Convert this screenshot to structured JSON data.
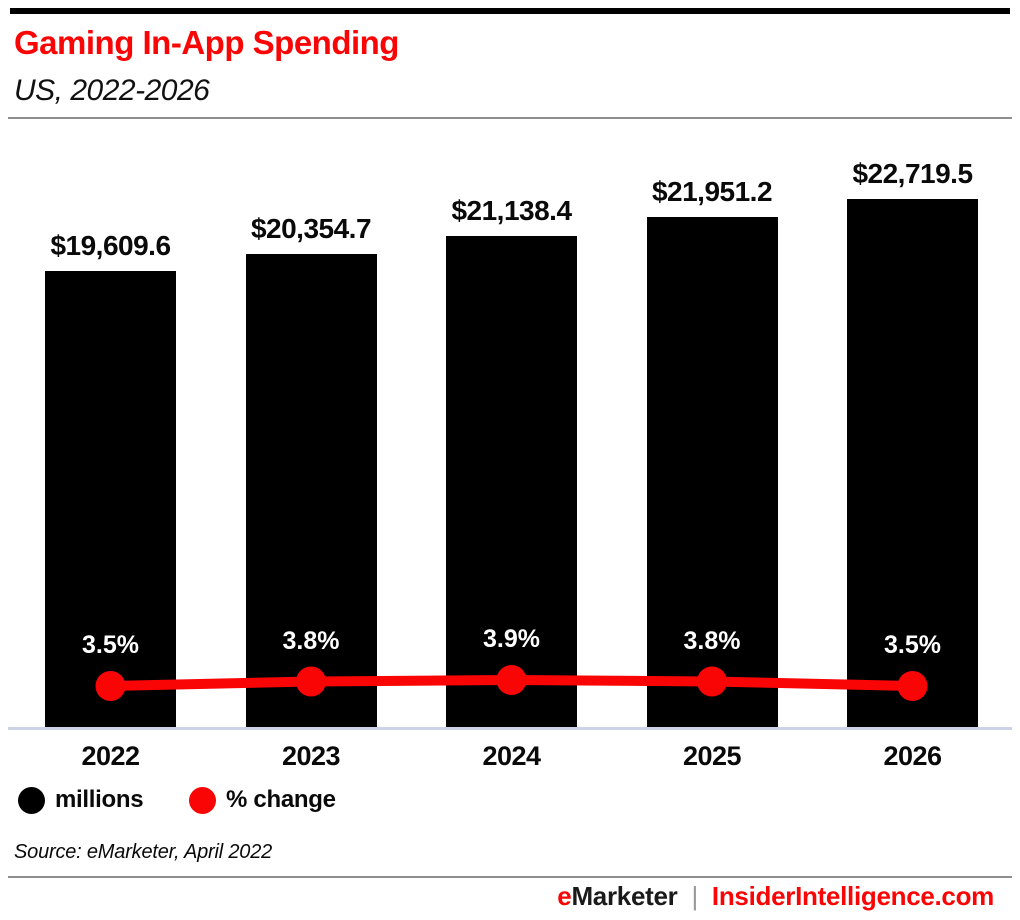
{
  "header": {
    "title": "Gaming In-App Spending",
    "subtitle": "US, 2022-2026"
  },
  "chart_data": {
    "type": "bar",
    "subtype": "bar-with-line-overlay",
    "title": "Gaming In-App Spending",
    "subtitle": "US, 2022-2026",
    "categories": [
      "2022",
      "2023",
      "2024",
      "2025",
      "2026"
    ],
    "series": [
      {
        "name": "millions",
        "type": "bar",
        "values": [
          19609.6,
          20354.7,
          21138.4,
          21951.2,
          22719.5
        ],
        "labels": [
          "$19,609.6",
          "$20,354.7",
          "$21,138.4",
          "$21,951.2",
          "$22,719.5"
        ],
        "color": "#000000"
      },
      {
        "name": "% change",
        "type": "line",
        "values": [
          3.5,
          3.8,
          3.9,
          3.8,
          3.5
        ],
        "labels": [
          "3.5%",
          "3.8%",
          "3.9%",
          "3.8%",
          "3.5%"
        ],
        "color": "#fa0505"
      }
    ],
    "legend": [
      {
        "label": "millions",
        "color": "#000000"
      },
      {
        "label": "% change",
        "color": "#fa0505"
      }
    ],
    "legend_position": "bottom-left",
    "grid": false,
    "value_axis_visible": false,
    "ylim_bars": [
      0,
      24000
    ]
  },
  "source": "Source: eMarketer, April 2022",
  "footer": {
    "brand_e": "e",
    "brand_rest": "Marketer",
    "separator": "|",
    "site": "InsiderIntelligence.com"
  },
  "colors": {
    "accent_red": "#fa0505",
    "bar_black": "#000000",
    "baseline_gray_blue": "#ccd3e6",
    "rule_gray": "#8f8f8f",
    "top_rule_black": "#000000",
    "pct_label_white": "#ffffff"
  }
}
